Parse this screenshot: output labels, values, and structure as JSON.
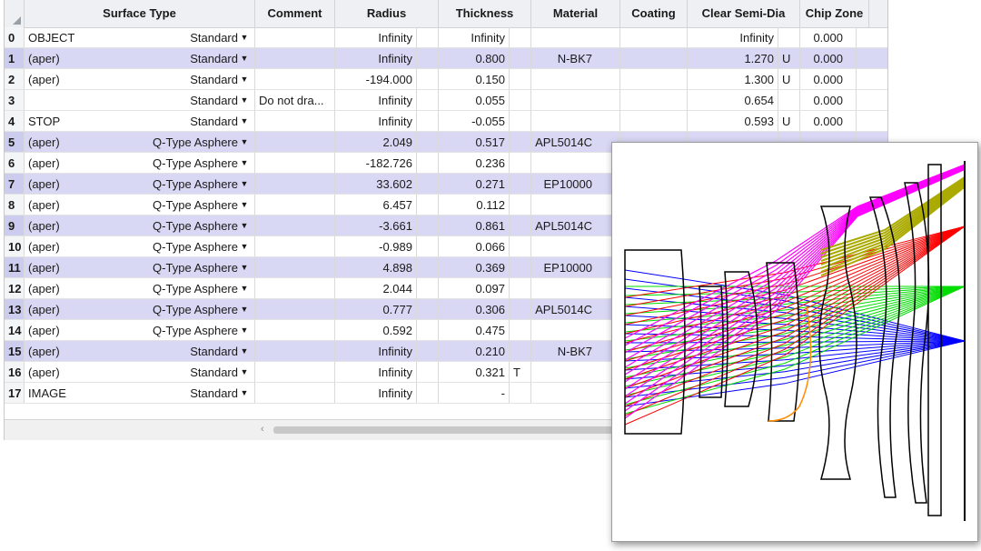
{
  "columns": {
    "surface_type": "Surface Type",
    "comment": "Comment",
    "radius": "Radius",
    "thickness": "Thickness",
    "material": "Material",
    "coating": "Coating",
    "clear_semi_dia": "Clear Semi-Dia",
    "chip_zone": "Chip Zone"
  },
  "rows": [
    {
      "num": "0",
      "label": "OBJECT",
      "type": "Standard",
      "comment": "",
      "radius": "Infinity",
      "thickness": "Infinity",
      "thk_solve": "",
      "material": "",
      "csd": "Infinity",
      "csd_solve": "",
      "chip": "0.000",
      "alt": false
    },
    {
      "num": "1",
      "label": "(aper)",
      "type": "Standard",
      "comment": "",
      "radius": "Infinity",
      "thickness": "0.800",
      "thk_solve": "",
      "material": "N-BK7",
      "csd": "1.270",
      "csd_solve": "U",
      "chip": "0.000",
      "alt": true
    },
    {
      "num": "2",
      "label": "(aper)",
      "type": "Standard",
      "comment": "",
      "radius": "-194.000",
      "thickness": "0.150",
      "thk_solve": "",
      "material": "",
      "csd": "1.300",
      "csd_solve": "U",
      "chip": "0.000",
      "alt": false
    },
    {
      "num": "3",
      "label": "",
      "type": "Standard",
      "comment": "Do not dra...",
      "radius": "Infinity",
      "thickness": "0.055",
      "thk_solve": "",
      "material": "",
      "csd": "0.654",
      "csd_solve": "",
      "chip": "0.000",
      "alt": false
    },
    {
      "num": "4",
      "label": "STOP",
      "type": "Standard",
      "comment": "",
      "radius": "Infinity",
      "thickness": "-0.055",
      "thk_solve": "",
      "material": "",
      "csd": "0.593",
      "csd_solve": "U",
      "chip": "0.000",
      "alt": false
    },
    {
      "num": "5",
      "label": "(aper)",
      "type": "Q-Type Asphere",
      "comment": "",
      "radius": "2.049",
      "thickness": "0.517",
      "thk_solve": "",
      "material": "APL5014C",
      "csd": "",
      "csd_solve": "",
      "chip": "",
      "alt": true
    },
    {
      "num": "6",
      "label": "(aper)",
      "type": "Q-Type Asphere",
      "comment": "",
      "radius": "-182.726",
      "thickness": "0.236",
      "thk_solve": "",
      "material": "",
      "csd": "",
      "csd_solve": "",
      "chip": "",
      "alt": false
    },
    {
      "num": "7",
      "label": "(aper)",
      "type": "Q-Type Asphere",
      "comment": "",
      "radius": "33.602",
      "thickness": "0.271",
      "thk_solve": "",
      "material": "EP10000",
      "csd": "",
      "csd_solve": "",
      "chip": "",
      "alt": true
    },
    {
      "num": "8",
      "label": "(aper)",
      "type": "Q-Type Asphere",
      "comment": "",
      "radius": "6.457",
      "thickness": "0.112",
      "thk_solve": "",
      "material": "",
      "csd": "",
      "csd_solve": "",
      "chip": "",
      "alt": false
    },
    {
      "num": "9",
      "label": "(aper)",
      "type": "Q-Type Asphere",
      "comment": "",
      "radius": "-3.661",
      "thickness": "0.861",
      "thk_solve": "",
      "material": "APL5014C",
      "csd": "",
      "csd_solve": "",
      "chip": "",
      "alt": true
    },
    {
      "num": "10",
      "label": "(aper)",
      "type": "Q-Type Asphere",
      "comment": "",
      "radius": "-0.989",
      "thickness": "0.066",
      "thk_solve": "",
      "material": "",
      "csd": "",
      "csd_solve": "",
      "chip": "",
      "alt": false
    },
    {
      "num": "11",
      "label": "(aper)",
      "type": "Q-Type Asphere",
      "comment": "",
      "radius": "4.898",
      "thickness": "0.369",
      "thk_solve": "",
      "material": "EP10000",
      "csd": "",
      "csd_solve": "",
      "chip": "",
      "alt": true
    },
    {
      "num": "12",
      "label": "(aper)",
      "type": "Q-Type Asphere",
      "comment": "",
      "radius": "2.044",
      "thickness": "0.097",
      "thk_solve": "",
      "material": "",
      "csd": "",
      "csd_solve": "",
      "chip": "",
      "alt": false
    },
    {
      "num": "13",
      "label": "(aper)",
      "type": "Q-Type Asphere",
      "comment": "",
      "radius": "0.777",
      "thickness": "0.306",
      "thk_solve": "",
      "material": "APL5014C",
      "csd": "",
      "csd_solve": "",
      "chip": "",
      "alt": true
    },
    {
      "num": "14",
      "label": "(aper)",
      "type": "Q-Type Asphere",
      "comment": "",
      "radius": "0.592",
      "thickness": "0.475",
      "thk_solve": "",
      "material": "",
      "csd": "",
      "csd_solve": "",
      "chip": "",
      "alt": false
    },
    {
      "num": "15",
      "label": "(aper)",
      "type": "Standard",
      "comment": "",
      "radius": "Infinity",
      "thickness": "0.210",
      "thk_solve": "",
      "material": "N-BK7",
      "csd": "",
      "csd_solve": "",
      "chip": "",
      "alt": true
    },
    {
      "num": "16",
      "label": "(aper)",
      "type": "Standard",
      "comment": "",
      "radius": "Infinity",
      "thickness": "0.321",
      "thk_solve": "T",
      "material": "",
      "csd": "",
      "csd_solve": "",
      "chip": "",
      "alt": false
    },
    {
      "num": "17",
      "label": "IMAGE",
      "type": "Standard",
      "comment": "",
      "radius": "Infinity",
      "thickness": "-",
      "thk_solve": "",
      "material": "",
      "csd": "",
      "csd_solve": "",
      "chip": "",
      "alt": false
    }
  ],
  "scroll": {
    "left_arrow": "‹"
  },
  "icons": {
    "dropdown": "caret-down-icon",
    "corner": "select-all-icon"
  },
  "ray_colors": {
    "field1": "#0000ff",
    "field2": "#00dd00",
    "field3": "#ff0000",
    "field4": "#ff00ff",
    "field5": "#aaaa00",
    "aperture": "#ff8c00"
  }
}
